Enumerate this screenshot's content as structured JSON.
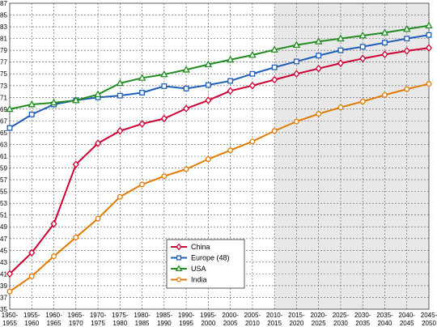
{
  "chart_data": {
    "type": "line",
    "title": "",
    "xlabel": "",
    "ylabel": "",
    "ylim": [
      35,
      87
    ],
    "yticks": [
      35,
      37,
      39,
      41,
      43,
      45,
      47,
      49,
      51,
      53,
      55,
      57,
      59,
      61,
      63,
      65,
      67,
      69,
      71,
      73,
      75,
      77,
      79,
      81,
      83,
      85,
      87
    ],
    "grid": true,
    "projection_shading_from": "2010-2015",
    "legend_position": "lower-center",
    "x": [
      [
        "1950-",
        "1955"
      ],
      [
        "1955-",
        "1960"
      ],
      [
        "1960-",
        "1965"
      ],
      [
        "1965-",
        "1970"
      ],
      [
        "1970-",
        "1975"
      ],
      [
        "1975-",
        "1980"
      ],
      [
        "1980-",
        "1985"
      ],
      [
        "1985-",
        "1990"
      ],
      [
        "1990-",
        "1995"
      ],
      [
        "1995-",
        "2000"
      ],
      [
        "2000-",
        "2005"
      ],
      [
        "2005-",
        "2010"
      ],
      [
        "2010-",
        "2015"
      ],
      [
        "2015-",
        "2020"
      ],
      [
        "2020-",
        "2025"
      ],
      [
        "2025-",
        "2030"
      ],
      [
        "2030-",
        "2035"
      ],
      [
        "2035-",
        "2040"
      ],
      [
        "2040-",
        "2045"
      ],
      [
        "2045-",
        "2050"
      ]
    ],
    "series": [
      {
        "name": "China",
        "color": "#cc0033",
        "marker": "diamond",
        "values": [
          41.0,
          44.6,
          49.5,
          59.6,
          63.2,
          65.3,
          66.5,
          67.4,
          69.1,
          70.5,
          72.1,
          73.0,
          74.0,
          75.0,
          75.9,
          76.8,
          77.6,
          78.3,
          78.9,
          79.4
        ]
      },
      {
        "name": "Europe (48)",
        "color": "#1e5eb8",
        "marker": "square",
        "values": [
          65.8,
          68.1,
          69.8,
          70.5,
          71.0,
          71.3,
          71.8,
          72.9,
          72.5,
          73.1,
          73.8,
          75.0,
          76.1,
          77.1,
          78.1,
          79.0,
          79.6,
          80.3,
          81.0,
          81.6
        ]
      },
      {
        "name": "USA",
        "color": "#228b22",
        "marker": "triangle",
        "values": [
          69.0,
          69.8,
          70.1,
          70.5,
          71.5,
          73.4,
          74.3,
          74.9,
          75.7,
          76.6,
          77.4,
          78.2,
          79.1,
          79.9,
          80.5,
          81.0,
          81.5,
          82.0,
          82.6,
          83.2
        ]
      },
      {
        "name": "India",
        "color": "#e07b00",
        "marker": "circle",
        "values": [
          38.0,
          40.6,
          44.0,
          47.2,
          50.4,
          54.1,
          56.2,
          57.6,
          58.8,
          60.5,
          62.0,
          63.5,
          65.3,
          66.9,
          68.2,
          69.3,
          70.3,
          71.4,
          72.4,
          73.3
        ]
      }
    ]
  }
}
